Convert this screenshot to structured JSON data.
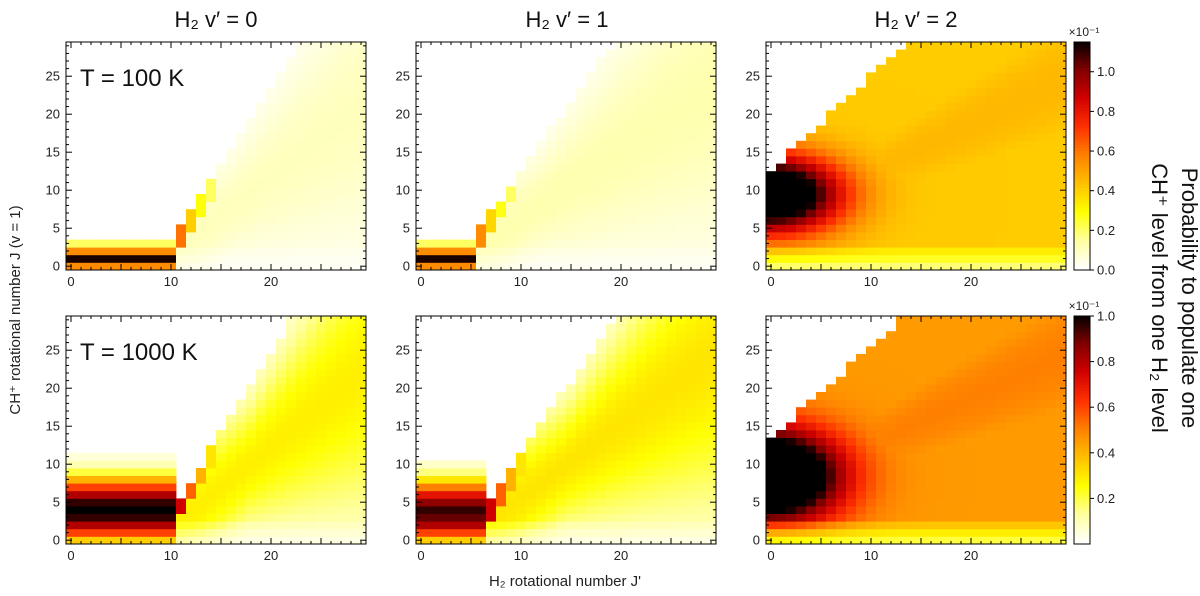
{
  "figure": {
    "column_titles": [
      "H₂ v′ = 0",
      "H₂ v′ = 1",
      "H₂ v′ = 2"
    ],
    "row_labels": [
      "T = 100 K",
      "T = 1000 K"
    ],
    "xlabel": "H₂ rotational number J'",
    "ylabel": "CH⁺ rotational number J  (v = 1)",
    "colorbar_label_lines": [
      "Probability to populate one",
      "CH⁺ level from one H₂ level"
    ],
    "colorbar_scale": "×10⁻¹"
  },
  "colors": {
    "cmap": [
      "#ffffff",
      "#ffffa0",
      "#ffff00",
      "#ffc000",
      "#ff8000",
      "#ff3000",
      "#d00000",
      "#800000",
      "#000000"
    ],
    "frame": "#000000"
  },
  "chart_data": [
    {
      "type": "heatmap",
      "title": "H₂ v′ = 0",
      "row": "T = 100 K",
      "vmax": 1.15,
      "xlim": [
        -0.5,
        29.5
      ],
      "ylim": [
        -0.5,
        29.5
      ],
      "xticks": [
        0,
        10,
        20
      ],
      "yticks": [
        0,
        5,
        10,
        15,
        20,
        25
      ],
      "xlabel": "H₂ rotational number J'",
      "ylabel": "CH⁺ rotational number J (v = 1)",
      "model": {
        "edge_j": 10,
        "slope": 1.6,
        "lowJ": [
          0.55,
          1.12,
          0.55,
          0.2
        ],
        "plateau_mid": 0.1,
        "plateau_width": 7,
        "rise": 0.95,
        "ridge": [
          0.6,
          0.4,
          0.28,
          0.2
        ]
      }
    },
    {
      "type": "heatmap",
      "title": "H₂ v′ = 1",
      "row": "T = 100 K",
      "vmax": 1.15,
      "xlim": [
        -0.5,
        29.5
      ],
      "ylim": [
        -0.5,
        29.5
      ],
      "xticks": [
        0,
        10,
        20
      ],
      "yticks": [
        0,
        5,
        10,
        15,
        20,
        25
      ],
      "xlabel": "H₂ rotational number J'",
      "ylabel": "CH⁺ rotational number J (v = 1)",
      "model": {
        "edge_j": 5,
        "slope": 1.45,
        "lowJ": [
          0.55,
          1.12,
          0.55,
          0.2
        ],
        "plateau_mid": 0.12,
        "plateau_width": 7,
        "rise": 0.95,
        "ridge": [
          0.55,
          0.38,
          0.27,
          0.2
        ]
      }
    },
    {
      "type": "heatmap",
      "title": "H₂ v′ = 2",
      "row": "T = 100 K",
      "vmax": 1.15,
      "xlim": [
        -0.5,
        29.5
      ],
      "ylim": [
        -0.5,
        29.5
      ],
      "xticks": [
        0,
        10,
        20
      ],
      "yticks": [
        0,
        5,
        10,
        15,
        20,
        25
      ],
      "xlabel": "H₂ rotational number J'",
      "ylabel": "CH⁺ rotational number J (v = 1)",
      "model": {
        "edge_j": -1,
        "slope": 1.25,
        "boundary0": 12.5,
        "lowJ": [],
        "plateau_mid": 0.45,
        "plateau_width": 8,
        "rise": 1.0,
        "peak": [
          0,
          9.5,
          1.1,
          7,
          5
        ],
        "ridge": []
      }
    },
    {
      "type": "heatmap",
      "title": "H₂ v′ = 0",
      "row": "T = 1000 K",
      "vmax": 1.0,
      "xlim": [
        -0.5,
        29.5
      ],
      "ylim": [
        -0.5,
        29.5
      ],
      "xticks": [
        0,
        10,
        20
      ],
      "yticks": [
        0,
        5,
        10,
        15,
        20,
        25
      ],
      "xlabel": "H₂ rotational number J'",
      "ylabel": "CH⁺ rotational number J (v = 1)",
      "model": {
        "edge_j": 10,
        "slope": 1.7,
        "lowJ": [
          0.35,
          0.6,
          0.8,
          0.95,
          1.0,
          0.95,
          0.8,
          0.6,
          0.4,
          0.2,
          0.1,
          0.05
        ],
        "plateau_mid": 0.28,
        "plateau_width": 9,
        "rise": 0.9,
        "ridge": [
          0.75,
          0.55,
          0.4,
          0.3
        ]
      }
    },
    {
      "type": "heatmap",
      "title": "H₂ v′ = 1",
      "row": "T = 1000 K",
      "vmax": 1.0,
      "xlim": [
        -0.5,
        29.5
      ],
      "ylim": [
        -0.5,
        29.5
      ],
      "xticks": [
        0,
        10,
        20
      ],
      "yticks": [
        0,
        5,
        10,
        15,
        20,
        25
      ],
      "xlabel": "H₂ rotational number J'",
      "ylabel": "CH⁺ rotational number J (v = 1)",
      "model": {
        "edge_j": 6,
        "slope": 1.55,
        "lowJ": [
          0.35,
          0.6,
          0.8,
          0.9,
          0.95,
          0.85,
          0.7,
          0.5,
          0.3,
          0.15,
          0.07
        ],
        "plateau_mid": 0.3,
        "plateau_width": 9,
        "rise": 0.9,
        "ridge": [
          0.75,
          0.55,
          0.4,
          0.3
        ]
      }
    },
    {
      "type": "heatmap",
      "title": "H₂ v′ = 2",
      "row": "T = 1000 K",
      "vmax": 1.0,
      "xlim": [
        -0.5,
        29.5
      ],
      "ylim": [
        -0.5,
        29.5
      ],
      "xticks": [
        0,
        10,
        20
      ],
      "yticks": [
        0,
        5,
        10,
        15,
        20,
        25
      ],
      "xlabel": "H₂ rotational number J'",
      "ylabel": "CH⁺ rotational number J (v = 1)",
      "model": {
        "edge_j": -1,
        "slope": 1.2,
        "boundary0": 13.5,
        "lowJ": [],
        "plateau_mid": 0.5,
        "plateau_width": 9,
        "rise": 1.0,
        "peak": [
          0,
          8.5,
          1.0,
          7,
          6
        ],
        "ridge": []
      }
    }
  ],
  "colorbars": [
    {
      "ticks": [
        "0.0",
        "0.2",
        "0.4",
        "0.6",
        "0.8",
        "1.0"
      ],
      "tick_values": [
        0,
        0.2,
        0.4,
        0.6,
        0.8,
        1.0
      ],
      "vmin": 0.0,
      "vmax": 1.15,
      "scale": "×10⁻¹"
    },
    {
      "ticks": [
        "0.2",
        "0.4",
        "0.6",
        "0.8",
        "1.0"
      ],
      "tick_values": [
        0.2,
        0.4,
        0.6,
        0.8,
        1.0
      ],
      "vmin": 0.0,
      "vmax": 1.0,
      "scale": "×10⁻¹"
    }
  ]
}
